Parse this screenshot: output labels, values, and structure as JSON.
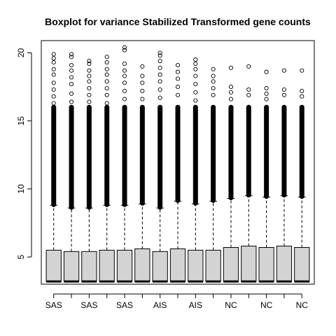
{
  "chart_data": {
    "type": "boxplot",
    "title": "Boxplot for variance Stabilized Transformed gene counts",
    "xlabel": "",
    "ylabel": "",
    "ylim": [
      3.0,
      20.9
    ],
    "yticks": [
      5,
      10,
      15,
      20
    ],
    "grid": false,
    "legend": "none",
    "box_fill": "#d3d3d3",
    "categories": [
      "SAS",
      "SAS",
      "SAS",
      "SAS",
      "SAS",
      "SAS",
      "AIS",
      "AIS",
      "AIS",
      "AIS",
      "NC",
      "NC",
      "NC",
      "NC",
      "NC"
    ],
    "tick_labels_shown": [
      "SAS",
      "SAS",
      "SAS",
      "AIS",
      "AIS",
      "NC",
      "NC",
      "NC"
    ],
    "boxes": [
      {
        "min": 3.2,
        "q1": 3.2,
        "median": 3.2,
        "q3": 5.5,
        "whisker_high": 8.8,
        "outlier_max": 19.9,
        "outliers_sparse": [
          19.9,
          19.6,
          19.3,
          18.8,
          18.4,
          17.8,
          17.3,
          16.8,
          16.3
        ]
      },
      {
        "min": 3.2,
        "q1": 3.2,
        "median": 3.2,
        "q3": 5.4,
        "whisker_high": 8.6,
        "outlier_max": 19.9,
        "outliers_sparse": [
          19.9,
          19.7,
          19.1,
          18.7,
          18.2,
          17.7,
          17.0,
          16.4
        ]
      },
      {
        "min": 3.2,
        "q1": 3.2,
        "median": 3.2,
        "q3": 5.4,
        "whisker_high": 8.6,
        "outlier_max": 19.4,
        "outliers_sparse": [
          19.4,
          19.2,
          18.7,
          18.3,
          17.9,
          17.4,
          16.9,
          16.4
        ]
      },
      {
        "min": 3.2,
        "q1": 3.2,
        "median": 3.2,
        "q3": 5.5,
        "whisker_high": 8.8,
        "outlier_max": 19.7,
        "outliers_sparse": [
          19.7,
          19.3,
          18.8,
          18.4,
          17.9,
          17.4,
          16.9,
          16.3
        ]
      },
      {
        "min": 3.2,
        "q1": 3.2,
        "median": 3.2,
        "q3": 5.5,
        "whisker_high": 8.8,
        "outlier_max": 20.4,
        "outliers_sparse": [
          20.4,
          20.2,
          19.2,
          18.7,
          18.3,
          17.8,
          17.2,
          16.6
        ]
      },
      {
        "min": 3.2,
        "q1": 3.2,
        "median": 3.2,
        "q3": 5.6,
        "whisker_high": 8.9,
        "outlier_max": 19.0,
        "outliers_sparse": [
          19.0,
          18.3,
          17.8,
          17.2,
          16.6
        ]
      },
      {
        "min": 3.2,
        "q1": 3.2,
        "median": 3.2,
        "q3": 5.4,
        "whisker_high": 8.6,
        "outlier_max": 20.0,
        "outliers_sparse": [
          20.0,
          19.8,
          19.4,
          18.9,
          18.4,
          17.9,
          17.3,
          16.7
        ]
      },
      {
        "min": 3.2,
        "q1": 3.2,
        "median": 3.2,
        "q3": 5.6,
        "whisker_high": 9.1,
        "outlier_max": 19.1,
        "outliers_sparse": [
          19.1,
          18.6,
          18.1,
          17.5,
          16.9
        ]
      },
      {
        "min": 3.2,
        "q1": 3.2,
        "median": 3.2,
        "q3": 5.5,
        "whisker_high": 8.9,
        "outlier_max": 19.5,
        "outliers_sparse": [
          19.5,
          19.2,
          18.8,
          18.3,
          17.7,
          17.1,
          16.5
        ]
      },
      {
        "min": 3.2,
        "q1": 3.2,
        "median": 3.2,
        "q3": 5.5,
        "whisker_high": 9.1,
        "outlier_max": 18.8,
        "outliers_sparse": [
          18.8,
          18.3,
          17.9,
          17.4,
          16.9
        ]
      },
      {
        "min": 3.2,
        "q1": 3.2,
        "median": 3.2,
        "q3": 5.7,
        "whisker_high": 9.3,
        "outlier_max": 18.9,
        "outliers_sparse": [
          18.9,
          17.5,
          17.1,
          16.6
        ]
      },
      {
        "min": 3.2,
        "q1": 3.2,
        "median": 3.2,
        "q3": 5.8,
        "whisker_high": 9.5,
        "outlier_max": 19.0,
        "outliers_sparse": [
          19.0,
          17.3,
          16.9
        ]
      },
      {
        "min": 3.2,
        "q1": 3.2,
        "median": 3.2,
        "q3": 5.7,
        "whisker_high": 9.4,
        "outlier_max": 18.6,
        "outliers_sparse": [
          18.6,
          17.4,
          17.0,
          16.6
        ]
      },
      {
        "min": 3.2,
        "q1": 3.2,
        "median": 3.2,
        "q3": 5.8,
        "whisker_high": 9.5,
        "outlier_max": 18.7,
        "outliers_sparse": [
          18.7,
          17.3,
          16.9
        ]
      },
      {
        "min": 3.2,
        "q1": 3.2,
        "median": 3.2,
        "q3": 5.7,
        "whisker_high": 9.4,
        "outlier_max": 18.7,
        "outliers_sparse": [
          18.7,
          17.2,
          16.8
        ]
      }
    ]
  }
}
